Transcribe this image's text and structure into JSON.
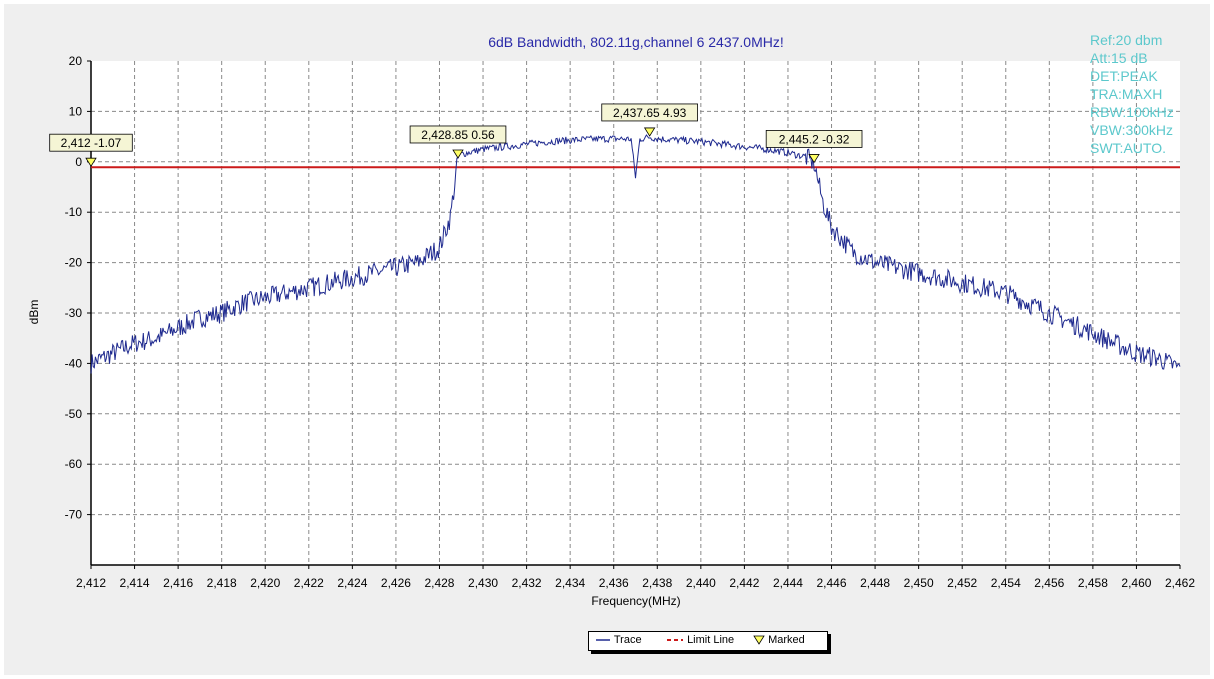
{
  "window": {
    "title": "6dB Bandwidth, 802.11g,channel 6  2437.0MHz!"
  },
  "info_panel": {
    "lines": [
      "Ref:20 dbm",
      "Att:15 dB",
      "DET:PEAK",
      "TRA:MAXH",
      "RBW:100kHz",
      "VBW:300kHz",
      "SWT:AUTO."
    ]
  },
  "legend": {
    "trace": "Trace",
    "limit_line": "Limit Line",
    "marked": "Marked"
  },
  "colors": {
    "trace": "#1f2a8f",
    "limit_line": "#cc1a1a",
    "marker_fill": "#ffff66",
    "annotation_fill": "#f5f5d5",
    "title": "#2a2aa8",
    "info": "#5cc8cc"
  },
  "chart_data": {
    "type": "line",
    "title": "6dB Bandwidth, 802.11g,channel 6  2437.0MHz!",
    "xlabel": "Frequency(MHz)",
    "ylabel": "dBm",
    "xlim": [
      2412,
      2462
    ],
    "ylim": [
      -80,
      20
    ],
    "x_tick_labels": [
      "2,412",
      "2,414",
      "2,416",
      "2,418",
      "2,420",
      "2,422",
      "2,424",
      "2,426",
      "2,428",
      "2,430",
      "2,432",
      "2,434",
      "2,436",
      "2,438",
      "2,440",
      "2,442",
      "2,444",
      "2,446",
      "2,448",
      "2,450",
      "2,452",
      "2,454",
      "2,456",
      "2,458",
      "2,460",
      "2,462"
    ],
    "y_ticks": [
      20,
      10,
      0,
      -10,
      -20,
      -30,
      -40,
      -50,
      -60,
      -70
    ],
    "y_tick_labels": [
      "20",
      "10",
      "0",
      "-10",
      "-20",
      "-30",
      "-40",
      "-50",
      "-60",
      "-70"
    ],
    "grid": true,
    "legend_position": "bottom-center",
    "limit_line": -1.07,
    "series": [
      {
        "name": "Trace",
        "x": [
          2412,
          2413,
          2414,
          2415,
          2416,
          2417,
          2418,
          2419,
          2420,
          2421,
          2422,
          2423,
          2424,
          2425,
          2426,
          2427,
          2428,
          2428.5,
          2428.85,
          2429,
          2430,
          2431,
          2432,
          2433,
          2434,
          2435,
          2436,
          2436.8,
          2437,
          2437.2,
          2437.65,
          2438,
          2439,
          2440,
          2441,
          2442,
          2443,
          2444,
          2444.8,
          2445.2,
          2445.6,
          2446,
          2447,
          2448,
          2449,
          2450,
          2451,
          2452,
          2453,
          2454,
          2455,
          2456,
          2457,
          2458,
          2459,
          2460,
          2461,
          2462
        ],
        "y": [
          -40,
          -38,
          -36,
          -35,
          -33,
          -31,
          -30,
          -28,
          -27,
          -26,
          -25,
          -24,
          -23,
          -22,
          -21,
          -20,
          -17,
          -11,
          0.56,
          1.5,
          2.5,
          3,
          3.5,
          4,
          4.3,
          4.5,
          4.6,
          4.5,
          -3,
          4.5,
          4.93,
          4.6,
          4.3,
          4,
          3.5,
          3,
          2.5,
          1.8,
          1,
          -0.32,
          -8,
          -13,
          -18,
          -20,
          -21,
          -22,
          -23,
          -24,
          -25,
          -26,
          -28,
          -30,
          -32,
          -34,
          -36,
          -38,
          -39,
          -41
        ]
      }
    ],
    "markers": [
      {
        "x": 2412,
        "y": -1.07,
        "label": "2,412 -1.07"
      },
      {
        "x": 2428.85,
        "y": 0.56,
        "label": "2,428.85 0.56"
      },
      {
        "x": 2437.65,
        "y": 4.93,
        "label": "2,437.65 4.93"
      },
      {
        "x": 2445.2,
        "y": -0.32,
        "label": "2,445.2 -0.32"
      }
    ]
  }
}
